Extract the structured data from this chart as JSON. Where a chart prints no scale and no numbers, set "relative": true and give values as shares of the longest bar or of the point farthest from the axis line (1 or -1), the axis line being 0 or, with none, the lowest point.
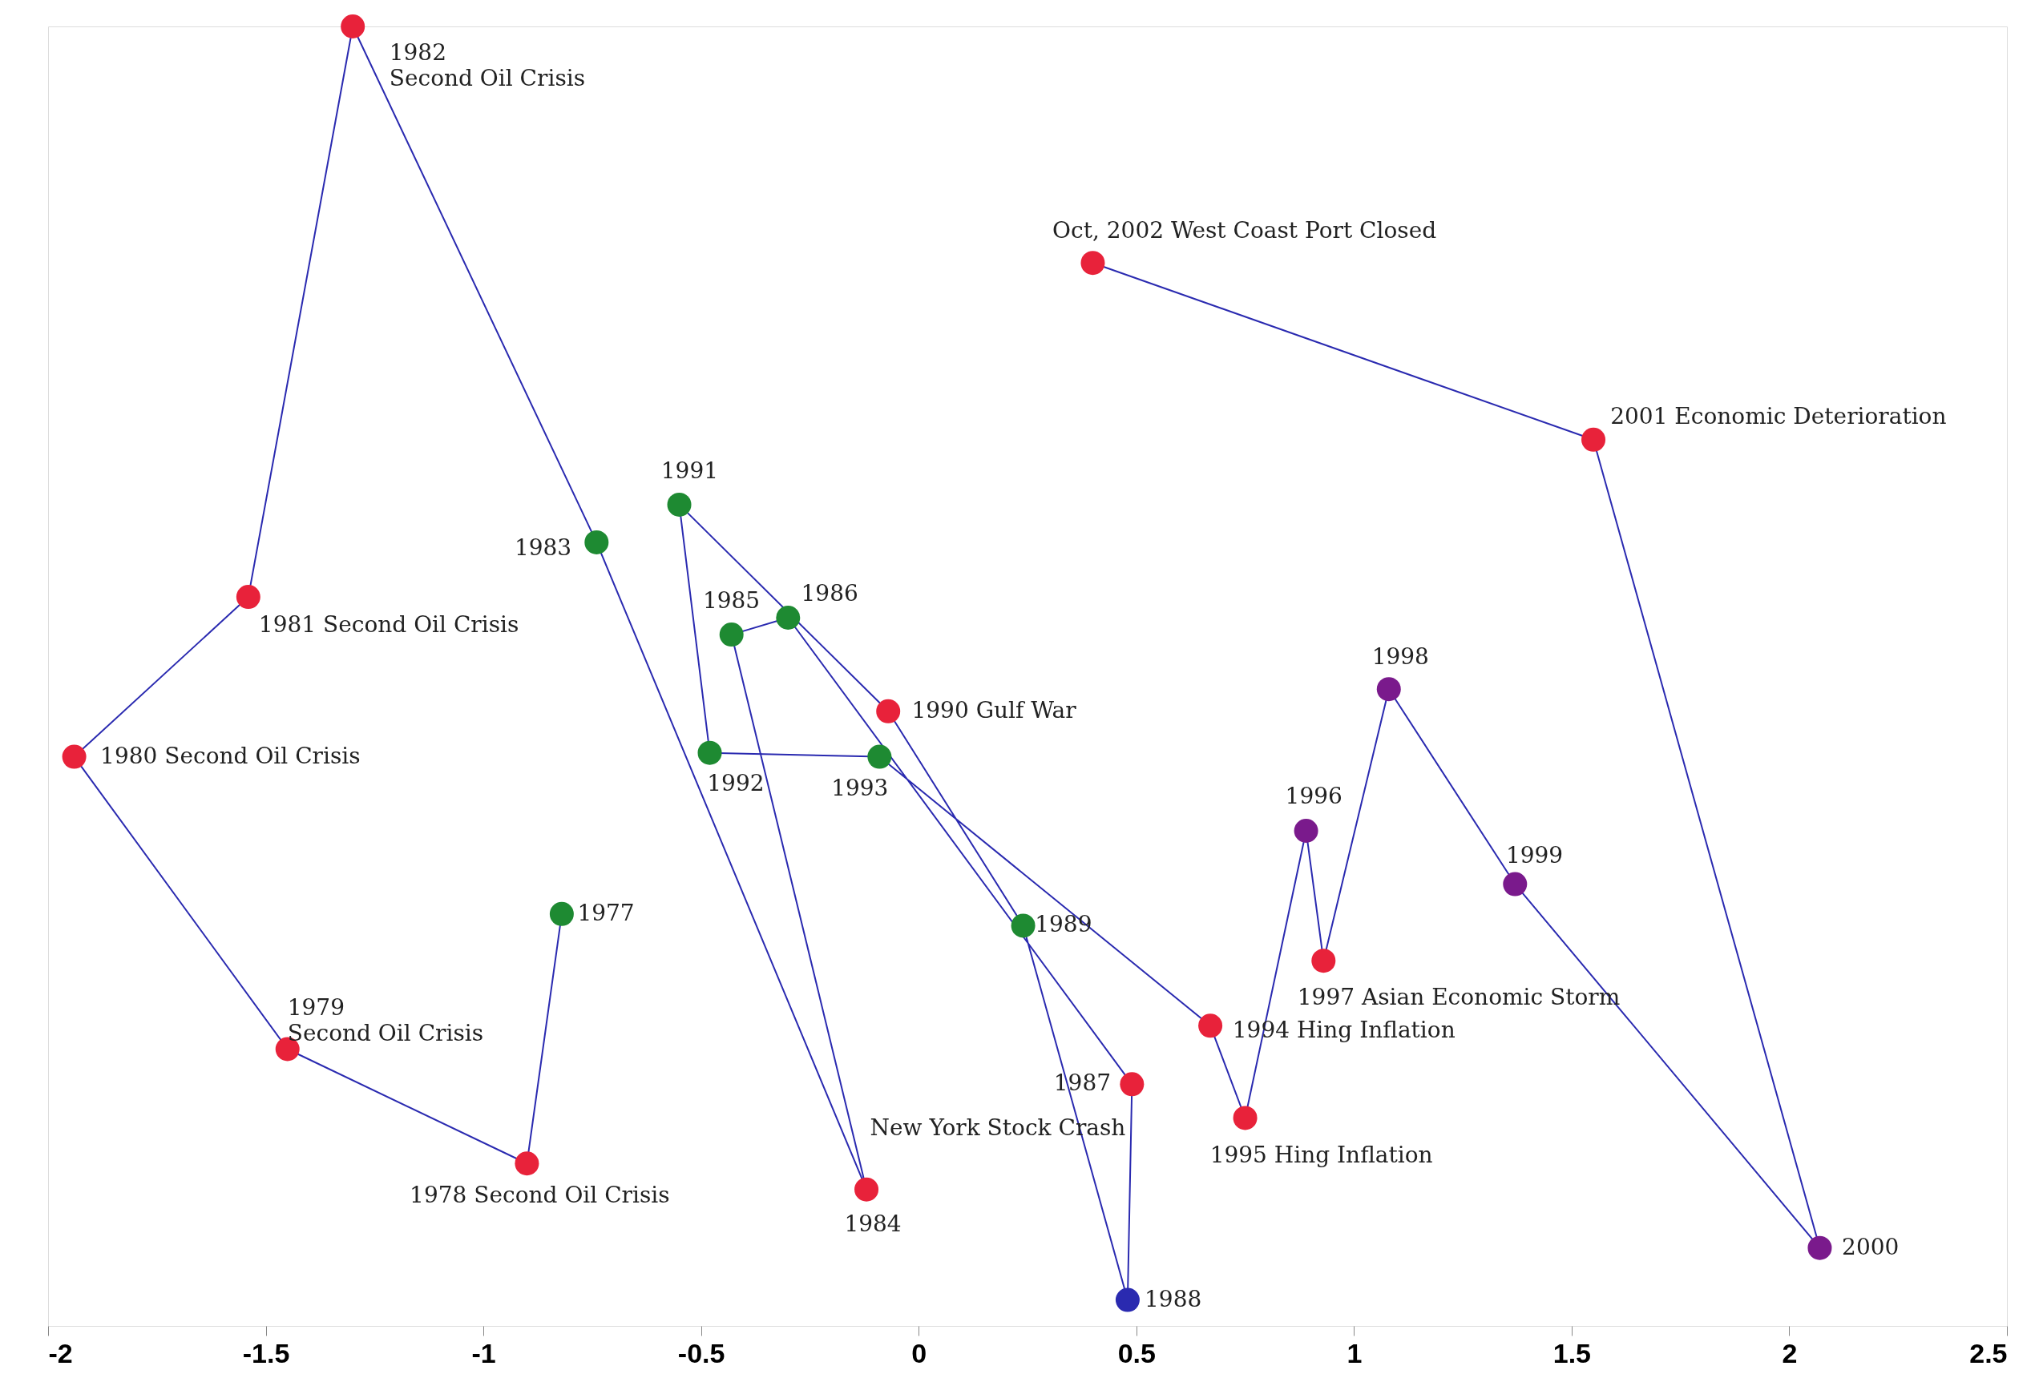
{
  "chart_data": {
    "type": "line",
    "marker": "circle",
    "line_style": "solid",
    "grid": false,
    "legend": false,
    "xlim": [
      -2,
      2.5
    ],
    "xticks": [
      -2,
      -1.5,
      -1,
      -0.5,
      0,
      0.5,
      1,
      1.5,
      2,
      2.5
    ],
    "relative": true,
    "series": [
      {
        "color": "#2a2ab0",
        "x": [
          -0.82,
          -0.9,
          -1.45,
          -1.94,
          -1.54,
          -1.3,
          -0.74,
          -0.12,
          -0.43,
          -0.3,
          0.49,
          0.48,
          0.24,
          -0.07,
          -0.55,
          -0.48,
          -0.09,
          0.67,
          0.75,
          0.89,
          0.93,
          1.08,
          1.37,
          2.07,
          1.55,
          0.4
        ],
        "values": [
          0.317,
          0.125,
          0.213,
          0.438,
          0.561,
          1.0,
          0.603,
          0.105,
          0.532,
          0.545,
          0.186,
          0.02,
          0.308,
          0.473,
          0.632,
          0.441,
          0.438,
          0.231,
          0.16,
          0.381,
          0.281,
          0.49,
          0.34,
          0.06,
          0.682,
          0.818
        ],
        "colors": [
          "#1e8a32",
          "#e8223a",
          "#e8223a",
          "#e8223a",
          "#e8223a",
          "#e8223a",
          "#1e8a32",
          "#e8223a",
          "#1e8a32",
          "#1e8a32",
          "#e8223a",
          "#2a2ab0",
          "#1e8a32",
          "#e8223a",
          "#1e8a32",
          "#1e8a32",
          "#1e8a32",
          "#e8223a",
          "#e8223a",
          "#7a1a8c",
          "#e8223a",
          "#7a1a8c",
          "#7a1a8c",
          "#7a1a8c",
          "#e8223a",
          "#e8223a"
        ]
      }
    ],
    "annotations": [
      {
        "text": "1977",
        "x": -0.82,
        "y": 0.317
      },
      {
        "text": "1978 Second Oil Crisis",
        "x": -0.9,
        "y": 0.125
      },
      {
        "text": "1979\nSecond Oil Crisis",
        "x": -1.45,
        "y": 0.213
      },
      {
        "text": "1980 Second Oil Crisis",
        "x": -1.94,
        "y": 0.438
      },
      {
        "text": "1981 Second Oil Crisis",
        "x": -1.54,
        "y": 0.561
      },
      {
        "text": "1982\nSecond Oil Crisis",
        "x": -1.3,
        "y": 1.0
      },
      {
        "text": "1983",
        "x": -0.74,
        "y": 0.603
      },
      {
        "text": "1984",
        "x": -0.12,
        "y": 0.105
      },
      {
        "text": "1985",
        "x": -0.43,
        "y": 0.532
      },
      {
        "text": "1986",
        "x": -0.3,
        "y": 0.545
      },
      {
        "text": "1987",
        "x": 0.49,
        "y": 0.186
      },
      {
        "text": "New York Stock Crash",
        "x": 0.49,
        "y": 0.186
      },
      {
        "text": "1988",
        "x": 0.48,
        "y": 0.02
      },
      {
        "text": "1989",
        "x": 0.24,
        "y": 0.308
      },
      {
        "text": "1990 Gulf War",
        "x": -0.07,
        "y": 0.473
      },
      {
        "text": "1991",
        "x": -0.55,
        "y": 0.632
      },
      {
        "text": "1992",
        "x": -0.48,
        "y": 0.441
      },
      {
        "text": "1993",
        "x": -0.09,
        "y": 0.438
      },
      {
        "text": "1994 Hing Inflation",
        "x": 0.67,
        "y": 0.231
      },
      {
        "text": "1995 Hing Inflation",
        "x": 0.75,
        "y": 0.16
      },
      {
        "text": "1996",
        "x": 0.89,
        "y": 0.381
      },
      {
        "text": "1997 Asian Economic Storm",
        "x": 0.93,
        "y": 0.281
      },
      {
        "text": "1998",
        "x": 1.08,
        "y": 0.49
      },
      {
        "text": "1999",
        "x": 1.37,
        "y": 0.34
      },
      {
        "text": "2000",
        "x": 2.07,
        "y": 0.06
      },
      {
        "text": "2001 Economic Deterioration",
        "x": 1.55,
        "y": 0.682
      },
      {
        "text": "Oct, 2002 West Coast Port Closed",
        "x": 0.4,
        "y": 0.818
      }
    ]
  }
}
